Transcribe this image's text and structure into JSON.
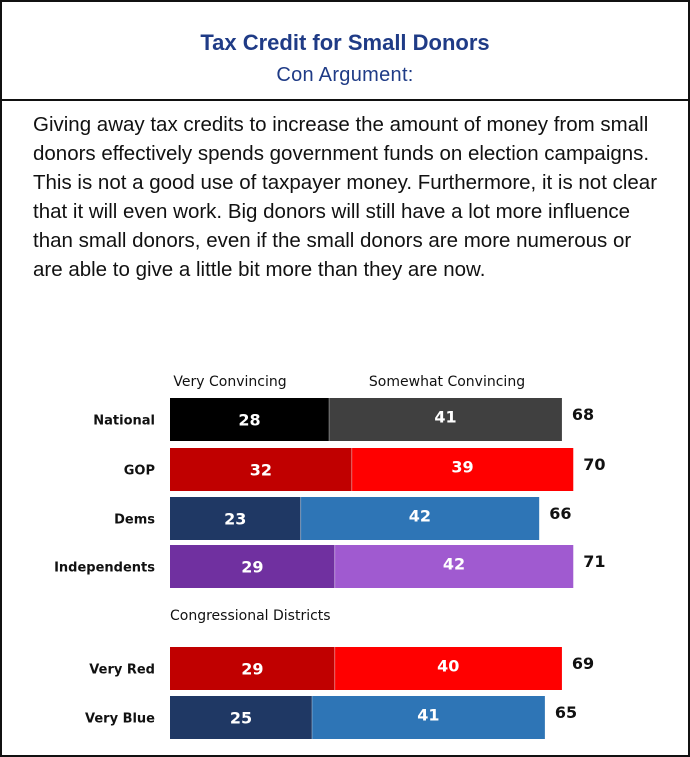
{
  "title": "Tax Credit for Small Donors",
  "subtitle": "Con Argument:",
  "body_text": "Giving away tax credits to increase the amount of money from small donors effectively spends government funds on election campaigns. This is not a good use of taxpayer money. Furthermore, it is not clear that it will even work. Big donors will still have a lot more influence than small donors, even if the small donors are more numerous or are able to give a little bit more than they are now.",
  "chart_data": {
    "type": "bar",
    "orientation": "horizontal",
    "stacked": true,
    "legend": [
      "Very Convincing",
      "Somewhat Convincing"
    ],
    "section_label": "Congressional Districts",
    "categories": [
      "National",
      "GOP",
      "Dems",
      "Independents",
      "Very Red",
      "Very Blue"
    ],
    "series": [
      {
        "name": "Very Convincing",
        "values": [
          28,
          32,
          23,
          29,
          29,
          25
        ]
      },
      {
        "name": "Somewhat Convincing",
        "values": [
          41,
          39,
          42,
          42,
          40,
          41
        ]
      }
    ],
    "totals": [
      68,
      70,
      66,
      71,
      69,
      65
    ],
    "colors": {
      "National": [
        "#000000",
        "#404040"
      ],
      "GOP": [
        "#c00000",
        "#ff0000"
      ],
      "Dems": [
        "#1f3864",
        "#2e75b6"
      ],
      "Independents": [
        "#7030a0",
        "#a05ad0"
      ],
      "Very Red": [
        "#c00000",
        "#ff0000"
      ],
      "Very Blue": [
        "#1f3864",
        "#2e75b6"
      ]
    }
  }
}
